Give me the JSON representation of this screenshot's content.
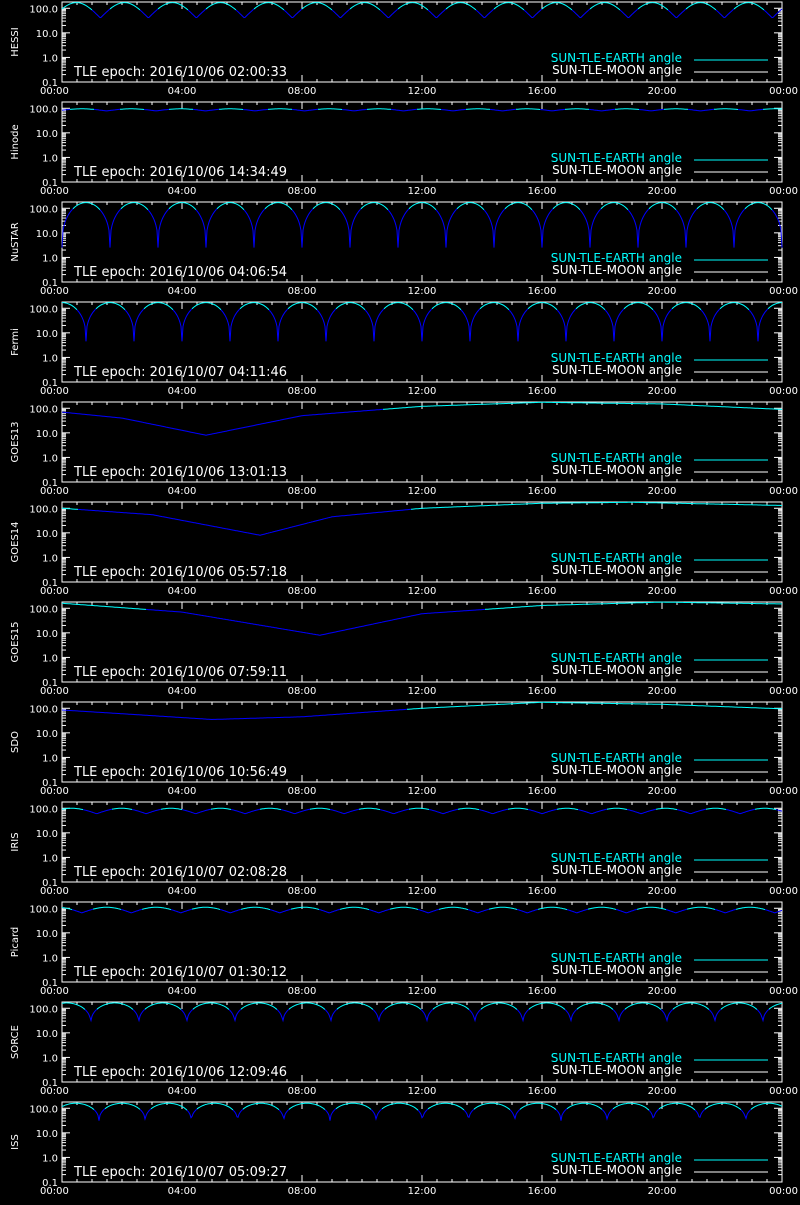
{
  "colors": {
    "background": "#000000",
    "axes": "#ffffff",
    "earth_angle": "#00ffff",
    "earth_angle_dim": "#0000ff",
    "moon_angle": "#ffffff"
  },
  "legend_labels": [
    "SUN-TLE-EARTH angle",
    "SUN-TLE-MOON angle"
  ],
  "x_tick_labels": [
    "00:00",
    "04:00",
    "08:00",
    "12:00",
    "16:00",
    "20:00",
    "00:00"
  ],
  "y_tick_labels": [
    "100.0",
    "10.0",
    "1.0",
    "0.1"
  ],
  "chart_data": [
    {
      "type": "line",
      "ylabel": "HESSI",
      "epoch_text": "TLE epoch: 2016/10/06 02:00:33",
      "xlim": [
        0,
        24
      ],
      "ylim": [
        0.1,
        180
      ],
      "yscale": "log",
      "period_hours": 1.6,
      "phase": 0.2,
      "min_value": 40,
      "max_value": 170,
      "peak_shape": "round"
    },
    {
      "type": "line",
      "ylabel": "Hinode",
      "epoch_text": "TLE epoch: 2016/10/06 14:34:49",
      "xlim": [
        0,
        24
      ],
      "ylim": [
        0.1,
        180
      ],
      "yscale": "log",
      "period_hours": 1.65,
      "phase": 0.1,
      "min_value": 78,
      "max_value": 95,
      "peak_shape": "round"
    },
    {
      "type": "line",
      "ylabel": "NuSTAR",
      "epoch_text": "TLE epoch: 2016/10/06 04:06:54",
      "xlim": [
        0,
        24
      ],
      "ylim": [
        0.1,
        180
      ],
      "yscale": "log",
      "period_hours": 1.6,
      "phase": 0.0,
      "min_value": 2.5,
      "max_value": 170,
      "peak_shape": "cusp"
    },
    {
      "type": "line",
      "ylabel": "Fermi",
      "epoch_text": "TLE epoch: 2016/10/07 04:11:46",
      "xlim": [
        0,
        24
      ],
      "ylim": [
        0.1,
        180
      ],
      "yscale": "log",
      "period_hours": 1.6,
      "phase": 0.5,
      "min_value": 4.5,
      "max_value": 170,
      "peak_shape": "cusp"
    },
    {
      "type": "line",
      "ylabel": "GOES13",
      "epoch_text": "TLE epoch: 2016/10/06 13:01:13",
      "xlim": [
        0,
        24
      ],
      "ylim": [
        0.1,
        180
      ],
      "yscale": "log",
      "points": [
        [
          0,
          70
        ],
        [
          2,
          40
        ],
        [
          4.8,
          8
        ],
        [
          8,
          50
        ],
        [
          12,
          120
        ],
        [
          16,
          175
        ],
        [
          20,
          150
        ],
        [
          24,
          90
        ]
      ]
    },
    {
      "type": "line",
      "ylabel": "GOES14",
      "epoch_text": "TLE epoch: 2016/10/06 05:57:18",
      "xlim": [
        0,
        24
      ],
      "ylim": [
        0.1,
        180
      ],
      "yscale": "log",
      "points": [
        [
          0,
          100
        ],
        [
          3,
          55
        ],
        [
          6.6,
          8
        ],
        [
          9,
          45
        ],
        [
          12,
          100
        ],
        [
          16,
          160
        ],
        [
          19,
          175
        ],
        [
          24,
          130
        ]
      ]
    },
    {
      "type": "line",
      "ylabel": "GOES15",
      "epoch_text": "TLE epoch: 2016/10/06 07:59:11",
      "xlim": [
        0,
        24
      ],
      "ylim": [
        0.1,
        180
      ],
      "yscale": "log",
      "points": [
        [
          0,
          160
        ],
        [
          4,
          70
        ],
        [
          8.6,
          8
        ],
        [
          12,
          60
        ],
        [
          16,
          130
        ],
        [
          20,
          178
        ],
        [
          24,
          150
        ]
      ]
    },
    {
      "type": "line",
      "ylabel": "SDO",
      "epoch_text": "TLE epoch: 2016/10/06 10:56:49",
      "xlim": [
        0,
        24
      ],
      "ylim": [
        0.1,
        180
      ],
      "yscale": "log",
      "points": [
        [
          0,
          85
        ],
        [
          2,
          60
        ],
        [
          5,
          35
        ],
        [
          8,
          45
        ],
        [
          12,
          100
        ],
        [
          16,
          175
        ],
        [
          20,
          145
        ],
        [
          24,
          95
        ]
      ]
    },
    {
      "type": "line",
      "ylabel": "IRIS",
      "epoch_text": "TLE epoch: 2016/10/07 02:08:28",
      "xlim": [
        0,
        24
      ],
      "ylim": [
        0.1,
        180
      ],
      "yscale": "log",
      "period_hours": 1.65,
      "phase": 0.3,
      "min_value": 60,
      "max_value": 100,
      "peak_shape": "round"
    },
    {
      "type": "line",
      "ylabel": "Picard",
      "epoch_text": "TLE epoch: 2016/10/07 01:30:12",
      "xlim": [
        0,
        24
      ],
      "ylim": [
        0.1,
        180
      ],
      "yscale": "log",
      "period_hours": 1.65,
      "phase": 0.6,
      "min_value": 65,
      "max_value": 110,
      "peak_shape": "round"
    },
    {
      "type": "line",
      "ylabel": "SORCE",
      "epoch_text": "TLE epoch: 2016/10/06 12:09:46",
      "xlim": [
        0,
        24
      ],
      "ylim": [
        0.1,
        180
      ],
      "yscale": "log",
      "period_hours": 1.6,
      "phase": 0.4,
      "min_value": 20,
      "max_value": 165,
      "peak_shape": "cusp"
    },
    {
      "type": "line",
      "ylabel": "ISS",
      "epoch_text": "TLE epoch: 2016/10/07 05:09:27",
      "xlim": [
        0,
        24
      ],
      "ylim": [
        0.1,
        180
      ],
      "yscale": "log",
      "period_hours": 1.54,
      "phase": 0.2,
      "min_value": 25,
      "max_value": 160,
      "peak_shape": "cusp"
    }
  ]
}
